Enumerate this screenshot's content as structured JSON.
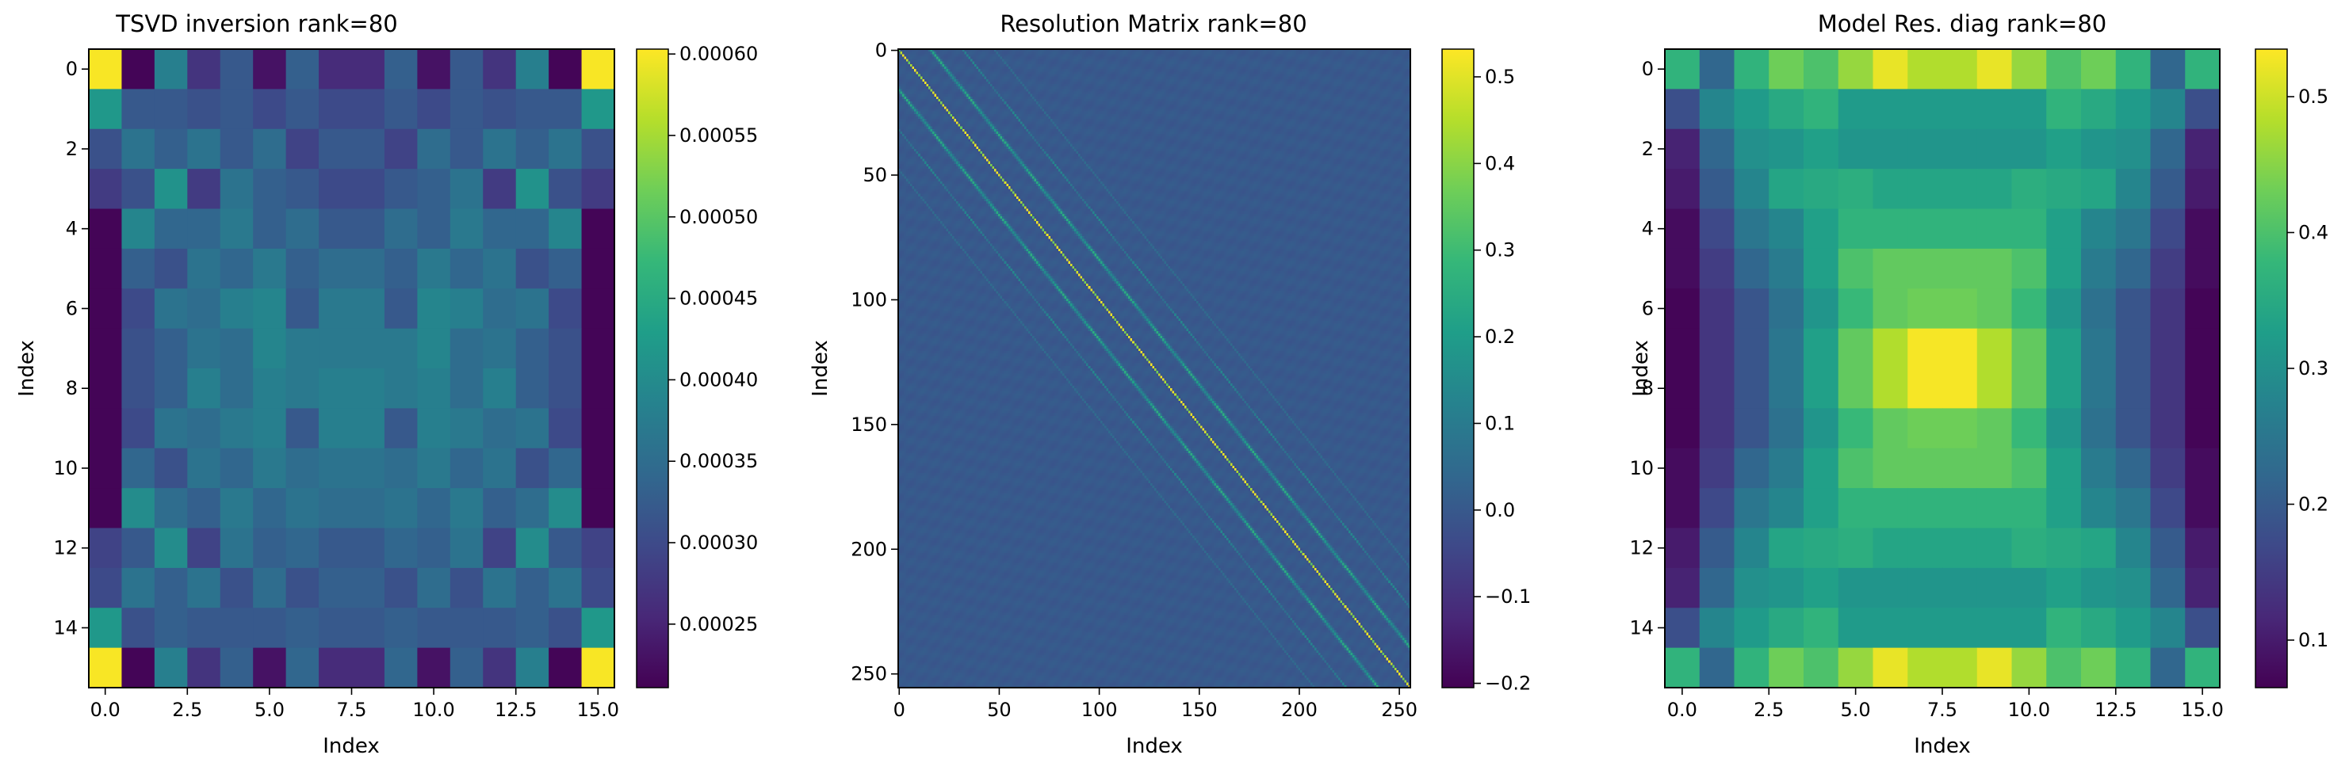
{
  "chart_data": [
    {
      "type": "heatmap",
      "title": "TSVD inversion rank=80",
      "xlabel": "Index",
      "ylabel": "Index",
      "colormap": "viridis",
      "xlim": [
        -0.5,
        15.5
      ],
      "ylim": [
        15.5,
        -0.5
      ],
      "xticks": [
        0.0,
        2.5,
        5.0,
        7.5,
        10.0,
        12.5,
        15.0
      ],
      "xtick_labels": [
        "0.0",
        "2.5",
        "5.0",
        "7.5",
        "10.0",
        "12.5",
        "15.0"
      ],
      "yticks": [
        0,
        2,
        4,
        6,
        8,
        10,
        12,
        14
      ],
      "ytick_labels": [
        "0",
        "2",
        "4",
        "6",
        "8",
        "10",
        "12",
        "14"
      ],
      "colorbar": {
        "vmin": 0.000211,
        "vmax": 0.000603,
        "ticks": [
          0.00025,
          0.0003,
          0.00035,
          0.0004,
          0.00045,
          0.0005,
          0.00055,
          0.0006
        ],
        "tick_labels": [
          "0.00025",
          "0.00030",
          "0.00035",
          "0.00040",
          "0.00045",
          "0.00050",
          "0.00055",
          "0.00060"
        ]
      },
      "z": [
        [
          0.0006,
          0.000215,
          0.00038,
          0.00027,
          0.00032,
          0.00023,
          0.00033,
          0.00026,
          0.00026,
          0.00033,
          0.00023,
          0.00032,
          0.00027,
          0.00038,
          0.000215,
          0.0006
        ],
        [
          0.00042,
          0.00032,
          0.00032,
          0.00031,
          0.00032,
          0.0003,
          0.00032,
          0.0003,
          0.0003,
          0.00032,
          0.0003,
          0.00032,
          0.00031,
          0.00032,
          0.00032,
          0.00042
        ],
        [
          0.00031,
          0.00036,
          0.00033,
          0.00036,
          0.00032,
          0.00035,
          0.00029,
          0.00032,
          0.00032,
          0.00029,
          0.00035,
          0.00032,
          0.00036,
          0.00033,
          0.00036,
          0.00031
        ],
        [
          0.00028,
          0.00031,
          0.00041,
          0.00028,
          0.00036,
          0.00033,
          0.00032,
          0.0003,
          0.0003,
          0.00032,
          0.00033,
          0.00036,
          0.00028,
          0.00041,
          0.00031,
          0.00028
        ],
        [
          0.000215,
          0.00039,
          0.00034,
          0.00034,
          0.00037,
          0.00033,
          0.00035,
          0.00032,
          0.00032,
          0.00035,
          0.00033,
          0.00037,
          0.00034,
          0.00034,
          0.00039,
          0.000215
        ],
        [
          0.000215,
          0.00033,
          0.00031,
          0.00036,
          0.00034,
          0.00037,
          0.00033,
          0.00035,
          0.00035,
          0.00033,
          0.00037,
          0.00034,
          0.00036,
          0.00031,
          0.00033,
          0.000215
        ],
        [
          0.000215,
          0.0003,
          0.00036,
          0.00035,
          0.00038,
          0.00039,
          0.00032,
          0.00037,
          0.00037,
          0.00032,
          0.00039,
          0.00038,
          0.00035,
          0.00036,
          0.0003,
          0.000215
        ],
        [
          0.000215,
          0.00031,
          0.00033,
          0.00036,
          0.00035,
          0.00039,
          0.00037,
          0.00037,
          0.00037,
          0.00037,
          0.00039,
          0.00035,
          0.00036,
          0.00033,
          0.00031,
          0.000215
        ],
        [
          0.000215,
          0.00031,
          0.00033,
          0.00038,
          0.00035,
          0.00038,
          0.00037,
          0.00038,
          0.00038,
          0.00037,
          0.00038,
          0.00035,
          0.00038,
          0.00033,
          0.00031,
          0.000215
        ],
        [
          0.000215,
          0.0003,
          0.00036,
          0.00035,
          0.00037,
          0.00038,
          0.00032,
          0.00038,
          0.00038,
          0.00032,
          0.00038,
          0.00037,
          0.00035,
          0.00036,
          0.0003,
          0.000215
        ],
        [
          0.000215,
          0.00034,
          0.00031,
          0.00036,
          0.00034,
          0.00037,
          0.00035,
          0.00036,
          0.00036,
          0.00035,
          0.00037,
          0.00034,
          0.00036,
          0.00031,
          0.00034,
          0.000215
        ],
        [
          0.000215,
          0.0004,
          0.00035,
          0.00033,
          0.00037,
          0.00034,
          0.00036,
          0.00035,
          0.00035,
          0.00036,
          0.00034,
          0.00037,
          0.00033,
          0.00035,
          0.0004,
          0.000215
        ],
        [
          0.00029,
          0.00032,
          0.0004,
          0.00029,
          0.00036,
          0.00033,
          0.00034,
          0.00032,
          0.00032,
          0.00034,
          0.00033,
          0.00036,
          0.00029,
          0.0004,
          0.00032,
          0.00029
        ],
        [
          0.0003,
          0.00036,
          0.00033,
          0.00036,
          0.00031,
          0.00035,
          0.00031,
          0.00033,
          0.00033,
          0.00031,
          0.00035,
          0.00031,
          0.00036,
          0.00033,
          0.00036,
          0.0003
        ],
        [
          0.00042,
          0.00031,
          0.00033,
          0.00032,
          0.00032,
          0.00032,
          0.00033,
          0.00032,
          0.00032,
          0.00033,
          0.00032,
          0.00032,
          0.00032,
          0.00033,
          0.00031,
          0.00042
        ],
        [
          0.0006,
          0.000215,
          0.00038,
          0.00027,
          0.00033,
          0.00023,
          0.00034,
          0.00026,
          0.00026,
          0.00034,
          0.00023,
          0.00033,
          0.00027,
          0.00038,
          0.000215,
          0.0006
        ]
      ]
    },
    {
      "type": "heatmap",
      "title": "Resolution Matrix rank=80",
      "xlabel": "Index",
      "ylabel": "Index",
      "colormap": "viridis",
      "n": 256,
      "structure": "near-zero background with a sharp positive main diagonal (about 0.3 to 0.53) and weaker parallel off-diagonal bands at offsets of roughly ±16 and ±32 (about 0.1 to 0.25)",
      "diagonal_max": 0.53,
      "off_diagonal_band_offsets": [
        16,
        32
      ],
      "xlim": [
        -0.5,
        255.5
      ],
      "ylim": [
        255.5,
        -0.5
      ],
      "xticks": [
        0,
        50,
        100,
        150,
        200,
        250
      ],
      "xtick_labels": [
        "0",
        "50",
        "100",
        "150",
        "200",
        "250"
      ],
      "yticks": [
        0,
        50,
        100,
        150,
        200,
        250
      ],
      "ytick_labels": [
        "0",
        "50",
        "100",
        "150",
        "200",
        "250"
      ],
      "colorbar": {
        "vmin": -0.205,
        "vmax": 0.532,
        "ticks": [
          -0.2,
          -0.1,
          0.0,
          0.1,
          0.2,
          0.3,
          0.4,
          0.5
        ],
        "tick_labels": [
          "−0.2",
          "−0.1",
          "0.0",
          "0.1",
          "0.2",
          "0.3",
          "0.4",
          "0.5"
        ]
      }
    },
    {
      "type": "heatmap",
      "title": "Model Res. diag rank=80",
      "xlabel": "Index",
      "ylabel": "Index",
      "colormap": "viridis",
      "xlim": [
        -0.5,
        15.5
      ],
      "ylim": [
        15.5,
        -0.5
      ],
      "xticks": [
        0.0,
        2.5,
        5.0,
        7.5,
        10.0,
        12.5,
        15.0
      ],
      "xtick_labels": [
        "0.0",
        "2.5",
        "5.0",
        "7.5",
        "10.0",
        "12.5",
        "15.0"
      ],
      "yticks": [
        0,
        2,
        4,
        6,
        8,
        10,
        12,
        14
      ],
      "ytick_labels": [
        "0",
        "2",
        "4",
        "6",
        "8",
        "10",
        "12",
        "14"
      ],
      "colorbar": {
        "vmin": 0.065,
        "vmax": 0.535,
        "ticks": [
          0.1,
          0.2,
          0.3,
          0.4,
          0.5
        ],
        "tick_labels": [
          "0.1",
          "0.2",
          "0.3",
          "0.4",
          "0.5"
        ]
      },
      "z": [
        [
          0.37,
          0.22,
          0.37,
          0.43,
          0.4,
          0.46,
          0.52,
          0.48,
          0.48,
          0.52,
          0.46,
          0.4,
          0.43,
          0.37,
          0.22,
          0.37
        ],
        [
          0.18,
          0.28,
          0.32,
          0.35,
          0.37,
          0.32,
          0.32,
          0.32,
          0.32,
          0.32,
          0.32,
          0.37,
          0.35,
          0.32,
          0.28,
          0.18
        ],
        [
          0.11,
          0.22,
          0.3,
          0.31,
          0.33,
          0.31,
          0.31,
          0.31,
          0.31,
          0.31,
          0.31,
          0.33,
          0.31,
          0.3,
          0.22,
          0.11
        ],
        [
          0.1,
          0.2,
          0.28,
          0.34,
          0.35,
          0.36,
          0.34,
          0.34,
          0.34,
          0.34,
          0.36,
          0.35,
          0.34,
          0.28,
          0.2,
          0.1
        ],
        [
          0.08,
          0.17,
          0.25,
          0.28,
          0.33,
          0.37,
          0.37,
          0.37,
          0.37,
          0.37,
          0.37,
          0.33,
          0.28,
          0.25,
          0.17,
          0.08
        ],
        [
          0.08,
          0.15,
          0.22,
          0.26,
          0.33,
          0.4,
          0.42,
          0.42,
          0.42,
          0.42,
          0.4,
          0.33,
          0.26,
          0.22,
          0.15,
          0.08
        ],
        [
          0.07,
          0.14,
          0.19,
          0.24,
          0.31,
          0.38,
          0.42,
          0.43,
          0.43,
          0.42,
          0.38,
          0.31,
          0.24,
          0.19,
          0.14,
          0.07
        ],
        [
          0.07,
          0.14,
          0.19,
          0.25,
          0.33,
          0.42,
          0.48,
          0.53,
          0.53,
          0.48,
          0.42,
          0.33,
          0.25,
          0.19,
          0.14,
          0.07
        ],
        [
          0.07,
          0.14,
          0.19,
          0.25,
          0.33,
          0.42,
          0.48,
          0.53,
          0.53,
          0.48,
          0.42,
          0.33,
          0.25,
          0.19,
          0.14,
          0.07
        ],
        [
          0.07,
          0.14,
          0.19,
          0.24,
          0.31,
          0.38,
          0.42,
          0.43,
          0.43,
          0.42,
          0.38,
          0.31,
          0.24,
          0.19,
          0.14,
          0.07
        ],
        [
          0.08,
          0.15,
          0.22,
          0.26,
          0.33,
          0.4,
          0.42,
          0.42,
          0.42,
          0.42,
          0.4,
          0.33,
          0.26,
          0.22,
          0.15,
          0.08
        ],
        [
          0.08,
          0.17,
          0.25,
          0.28,
          0.33,
          0.37,
          0.37,
          0.37,
          0.37,
          0.37,
          0.37,
          0.33,
          0.28,
          0.25,
          0.17,
          0.08
        ],
        [
          0.1,
          0.2,
          0.28,
          0.34,
          0.35,
          0.36,
          0.34,
          0.34,
          0.34,
          0.34,
          0.36,
          0.35,
          0.34,
          0.28,
          0.2,
          0.1
        ],
        [
          0.11,
          0.22,
          0.3,
          0.31,
          0.33,
          0.31,
          0.31,
          0.31,
          0.31,
          0.31,
          0.31,
          0.33,
          0.31,
          0.3,
          0.22,
          0.11
        ],
        [
          0.18,
          0.28,
          0.32,
          0.35,
          0.37,
          0.32,
          0.32,
          0.32,
          0.32,
          0.32,
          0.32,
          0.37,
          0.35,
          0.32,
          0.28,
          0.18
        ],
        [
          0.37,
          0.22,
          0.37,
          0.43,
          0.4,
          0.46,
          0.52,
          0.48,
          0.48,
          0.52,
          0.46,
          0.4,
          0.43,
          0.37,
          0.22,
          0.37
        ]
      ]
    }
  ]
}
